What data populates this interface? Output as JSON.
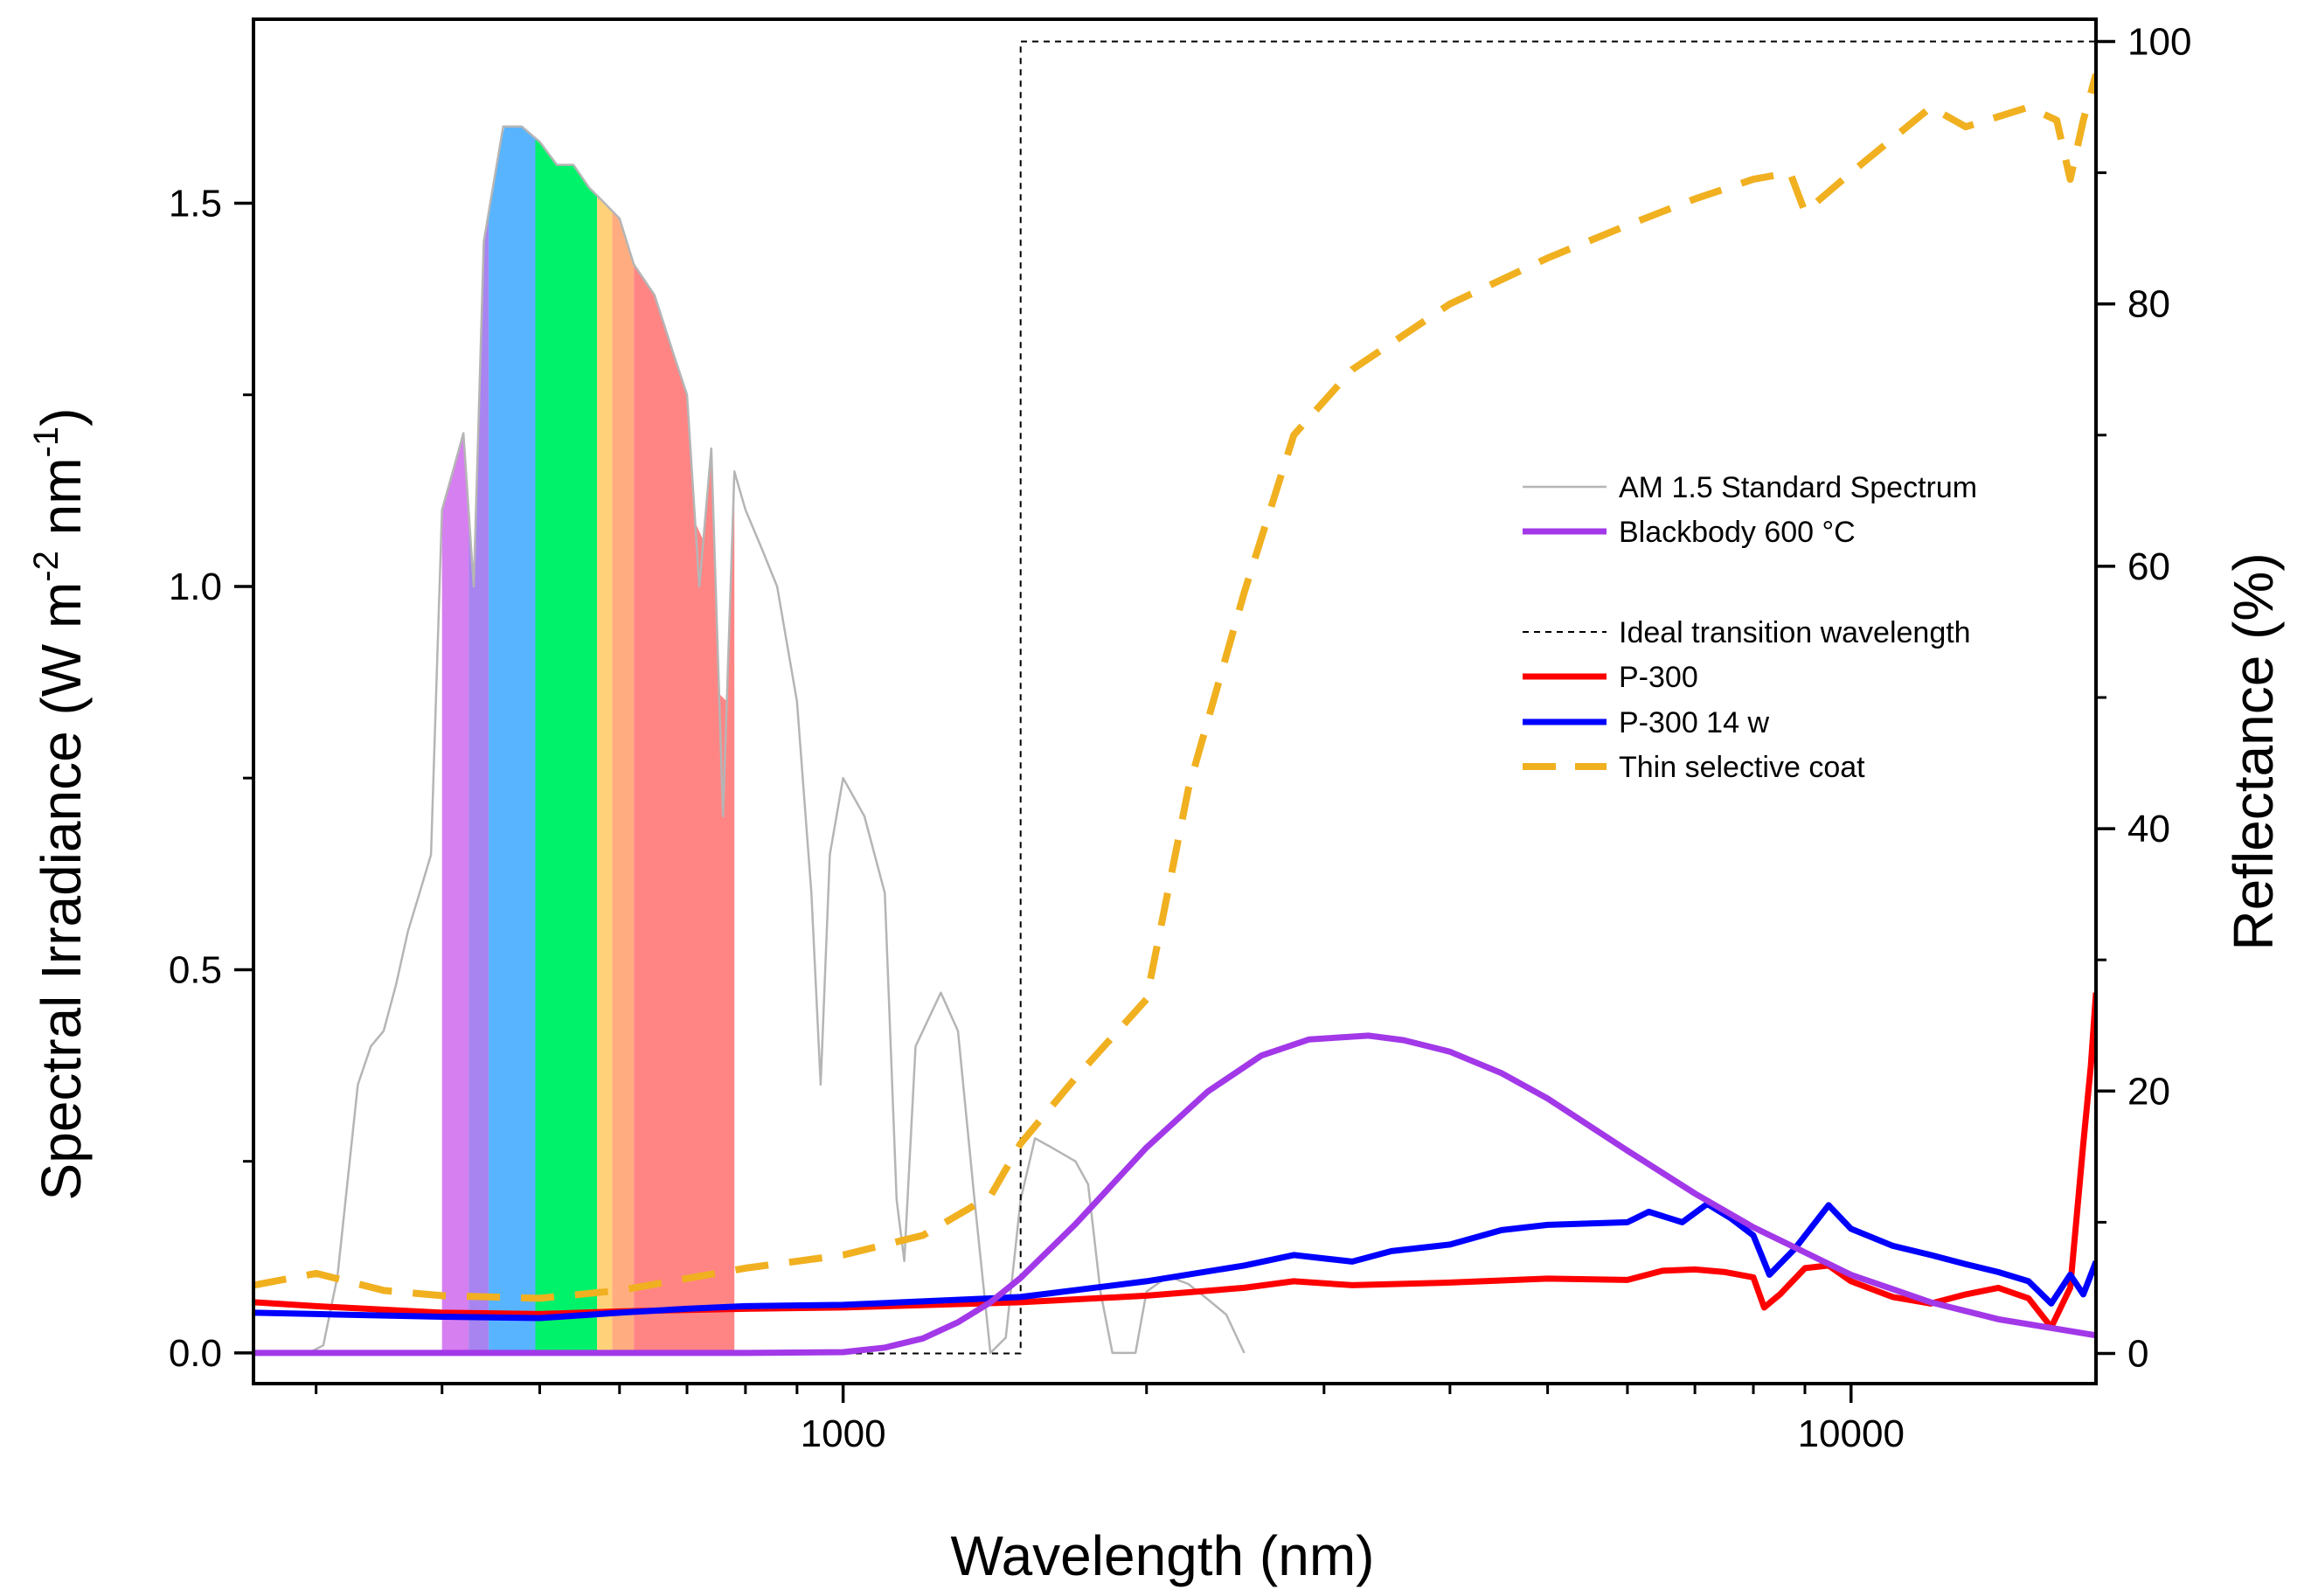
{
  "chart_data": {
    "type": "line",
    "x_scale": "log",
    "xlim": [
      260,
      17500
    ],
    "ylim_left": [
      -0.04,
      1.74
    ],
    "ylim_right": [
      -2.3,
      101.7
    ],
    "xlabel": "Wavelength (nm)",
    "ylabel_left": {
      "main": "Spectral Irradiance  (W m",
      "sup1": "-2",
      "mid": " nm",
      "sup2": "-1",
      "end": ")"
    },
    "ylabel_right": "Reflectance (%)",
    "x_ticks": [
      1000,
      10000
    ],
    "x_tick_labels": [
      "1000",
      "10000"
    ],
    "y_left_ticks": [
      0.0,
      0.5,
      1.0,
      1.5
    ],
    "y_left_tick_labels": [
      "0.0",
      "0.5",
      "1.0",
      "1.5"
    ],
    "y_right_ticks": [
      0,
      20,
      40,
      60,
      80,
      100
    ],
    "y_right_tick_labels": [
      "0",
      "20",
      "40",
      "60",
      "80",
      "100"
    ],
    "legend": {
      "position": "right-center",
      "entries": [
        {
          "label": "AM 1.5 Standard Spectrum",
          "color": "#b5b5b5",
          "style": "solid-thin"
        },
        {
          "label": "Blackbody 600 °C",
          "color": "#a238e8",
          "style": "solid-thick"
        },
        {
          "label": "Ideal transition wavelength",
          "color": "#000000",
          "style": "dashed-thin"
        },
        {
          "label": "P-300",
          "color": "#ff0000",
          "style": "solid-thick"
        },
        {
          "label": "P-300 14 w",
          "color": "#0000ff",
          "style": "solid-thick"
        },
        {
          "label": "Thin selective coat",
          "color": "#f0b020",
          "style": "dashed-thick"
        }
      ]
    },
    "visible_bands": [
      {
        "from": 400,
        "to": 425,
        "color": "#d67ff0"
      },
      {
        "from": 425,
        "to": 445,
        "color": "#a884f0"
      },
      {
        "from": 445,
        "to": 495,
        "color": "#58b4ff"
      },
      {
        "from": 495,
        "to": 570,
        "color": "#00f26a"
      },
      {
        "from": 570,
        "to": 590,
        "color": "#ffd27a"
      },
      {
        "from": 590,
        "to": 620,
        "color": "#ffad80"
      },
      {
        "from": 620,
        "to": 780,
        "color": "#ff8585"
      }
    ],
    "series": [
      {
        "name": "AM 1.5 Standard Spectrum",
        "axis": "left",
        "color": "#b5b5b5",
        "points": [
          [
            280,
            0.0
          ],
          [
            295,
            0.0
          ],
          [
            305,
            0.01
          ],
          [
            315,
            0.1
          ],
          [
            330,
            0.35
          ],
          [
            340,
            0.4
          ],
          [
            350,
            0.42
          ],
          [
            360,
            0.48
          ],
          [
            370,
            0.55
          ],
          [
            380,
            0.6
          ],
          [
            390,
            0.65
          ],
          [
            400,
            1.1
          ],
          [
            410,
            1.15
          ],
          [
            420,
            1.2
          ],
          [
            430,
            1.0
          ],
          [
            440,
            1.45
          ],
          [
            460,
            1.6
          ],
          [
            480,
            1.6
          ],
          [
            500,
            1.58
          ],
          [
            520,
            1.55
          ],
          [
            540,
            1.55
          ],
          [
            560,
            1.52
          ],
          [
            580,
            1.5
          ],
          [
            600,
            1.48
          ],
          [
            620,
            1.42
          ],
          [
            650,
            1.38
          ],
          [
            680,
            1.3
          ],
          [
            700,
            1.25
          ],
          [
            720,
            1.0
          ],
          [
            740,
            1.18
          ],
          [
            760,
            0.7
          ],
          [
            780,
            1.15
          ],
          [
            800,
            1.1
          ],
          [
            830,
            1.05
          ],
          [
            860,
            1.0
          ],
          [
            900,
            0.85
          ],
          [
            930,
            0.6
          ],
          [
            950,
            0.35
          ],
          [
            970,
            0.65
          ],
          [
            1000,
            0.75
          ],
          [
            1050,
            0.7
          ],
          [
            1100,
            0.6
          ],
          [
            1130,
            0.2
          ],
          [
            1150,
            0.12
          ],
          [
            1180,
            0.4
          ],
          [
            1250,
            0.47
          ],
          [
            1300,
            0.42
          ],
          [
            1350,
            0.2
          ],
          [
            1400,
            0.0
          ],
          [
            1450,
            0.02
          ],
          [
            1500,
            0.2
          ],
          [
            1550,
            0.28
          ],
          [
            1600,
            0.27
          ],
          [
            1700,
            0.25
          ],
          [
            1750,
            0.22
          ],
          [
            1800,
            0.08
          ],
          [
            1850,
            0.0
          ],
          [
            1950,
            0.0
          ],
          [
            2000,
            0.08
          ],
          [
            2100,
            0.1
          ],
          [
            2200,
            0.09
          ],
          [
            2300,
            0.07
          ],
          [
            2400,
            0.05
          ],
          [
            2500,
            0.0
          ]
        ]
      },
      {
        "name": "Blackbody 600 °C",
        "axis": "left",
        "color": "#a238e8",
        "points": [
          [
            260,
            0.0
          ],
          [
            800,
            0.0
          ],
          [
            1000,
            0.001
          ],
          [
            1100,
            0.007
          ],
          [
            1200,
            0.019
          ],
          [
            1300,
            0.04
          ],
          [
            1400,
            0.066
          ],
          [
            1500,
            0.098
          ],
          [
            1700,
            0.168
          ],
          [
            2000,
            0.268
          ],
          [
            2300,
            0.341
          ],
          [
            2600,
            0.388
          ],
          [
            2900,
            0.409
          ],
          [
            3320,
            0.414
          ],
          [
            3600,
            0.408
          ],
          [
            4000,
            0.393
          ],
          [
            4500,
            0.365
          ],
          [
            5000,
            0.332
          ],
          [
            6000,
            0.264
          ],
          [
            7000,
            0.208
          ],
          [
            8000,
            0.164
          ],
          [
            10000,
            0.102
          ],
          [
            12000,
            0.066
          ],
          [
            14000,
            0.044
          ],
          [
            17500,
            0.023
          ]
        ]
      },
      {
        "name": "Ideal transition wavelength",
        "axis": "right",
        "color": "#000000",
        "points": [
          [
            260,
            0
          ],
          [
            1500,
            0
          ],
          [
            1500,
            100
          ],
          [
            17500,
            100
          ]
        ]
      },
      {
        "name": "P-300",
        "axis": "right",
        "color": "#ff0000",
        "points": [
          [
            260,
            3.9
          ],
          [
            300,
            3.6
          ],
          [
            400,
            3.1
          ],
          [
            500,
            3.0
          ],
          [
            600,
            3.2
          ],
          [
            800,
            3.4
          ],
          [
            1000,
            3.5
          ],
          [
            1500,
            3.9
          ],
          [
            2000,
            4.4
          ],
          [
            2500,
            5.0
          ],
          [
            2800,
            5.5
          ],
          [
            3200,
            5.2
          ],
          [
            4000,
            5.4
          ],
          [
            5000,
            5.7
          ],
          [
            6000,
            5.6
          ],
          [
            6500,
            6.3
          ],
          [
            7000,
            6.4
          ],
          [
            7500,
            6.2
          ],
          [
            8000,
            5.8
          ],
          [
            8200,
            3.5
          ],
          [
            8500,
            4.5
          ],
          [
            9000,
            6.5
          ],
          [
            9500,
            6.7
          ],
          [
            10000,
            5.5
          ],
          [
            11000,
            4.3
          ],
          [
            12000,
            3.8
          ],
          [
            13000,
            4.5
          ],
          [
            14000,
            5.0
          ],
          [
            15000,
            4.2
          ],
          [
            15800,
            2.0
          ],
          [
            16500,
            5.0
          ],
          [
            17000,
            16.0
          ],
          [
            17300,
            22.0
          ],
          [
            17500,
            27.5
          ]
        ]
      },
      {
        "name": "P-300 14 w",
        "axis": "right",
        "color": "#0000ff",
        "points": [
          [
            260,
            3.1
          ],
          [
            300,
            3.0
          ],
          [
            400,
            2.8
          ],
          [
            500,
            2.7
          ],
          [
            600,
            3.1
          ],
          [
            700,
            3.4
          ],
          [
            800,
            3.6
          ],
          [
            1000,
            3.7
          ],
          [
            1500,
            4.3
          ],
          [
            2000,
            5.5
          ],
          [
            2500,
            6.7
          ],
          [
            2800,
            7.5
          ],
          [
            3200,
            7.0
          ],
          [
            3500,
            7.8
          ],
          [
            4000,
            8.3
          ],
          [
            4500,
            9.4
          ],
          [
            5000,
            9.8
          ],
          [
            6000,
            10.0
          ],
          [
            6300,
            10.8
          ],
          [
            6800,
            10.0
          ],
          [
            7200,
            11.4
          ],
          [
            7600,
            10.3
          ],
          [
            8000,
            9.0
          ],
          [
            8300,
            6.0
          ],
          [
            8800,
            8.0
          ],
          [
            9500,
            11.3
          ],
          [
            10000,
            9.5
          ],
          [
            11000,
            8.2
          ],
          [
            12000,
            7.5
          ],
          [
            13000,
            6.8
          ],
          [
            14000,
            6.2
          ],
          [
            15000,
            5.5
          ],
          [
            15800,
            3.8
          ],
          [
            16500,
            6.0
          ],
          [
            17000,
            4.5
          ],
          [
            17500,
            7.0
          ]
        ]
      },
      {
        "name": "Thin selective coat",
        "axis": "right",
        "color": "#f0b020",
        "points": [
          [
            260,
            5.2
          ],
          [
            300,
            6.1
          ],
          [
            350,
            4.8
          ],
          [
            400,
            4.4
          ],
          [
            500,
            4.2
          ],
          [
            600,
            4.8
          ],
          [
            800,
            6.5
          ],
          [
            1000,
            7.5
          ],
          [
            1200,
            9.0
          ],
          [
            1400,
            12.0
          ],
          [
            1500,
            16.0
          ],
          [
            1700,
            21.0
          ],
          [
            2000,
            27.0
          ],
          [
            2200,
            43.0
          ],
          [
            2500,
            58.0
          ],
          [
            2800,
            70.0
          ],
          [
            3200,
            75.0
          ],
          [
            4000,
            80.0
          ],
          [
            5000,
            83.5
          ],
          [
            6000,
            86.0
          ],
          [
            7000,
            88.0
          ],
          [
            8000,
            89.5
          ],
          [
            8700,
            90.0
          ],
          [
            9000,
            87.0
          ],
          [
            10000,
            90.0
          ],
          [
            12000,
            95.0
          ],
          [
            13000,
            93.5
          ],
          [
            15000,
            95.0
          ],
          [
            16000,
            94.0
          ],
          [
            16500,
            89.5
          ],
          [
            17000,
            94.0
          ],
          [
            17500,
            97.5
          ]
        ]
      }
    ]
  }
}
